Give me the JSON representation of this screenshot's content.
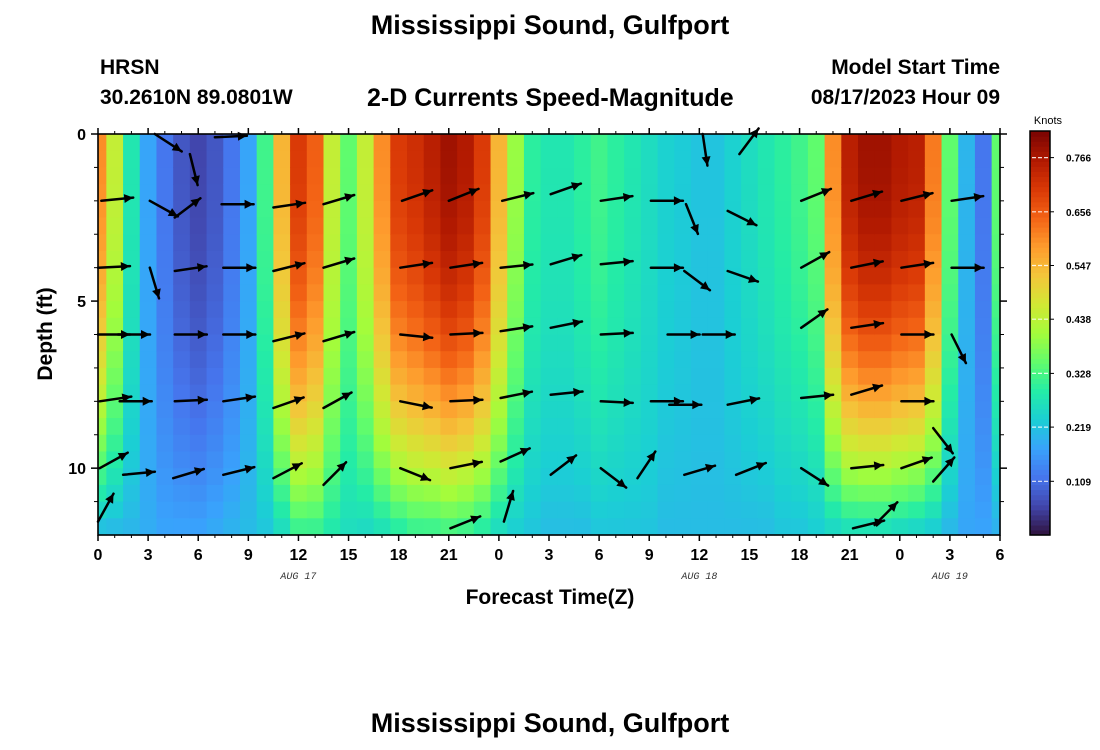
{
  "header": {
    "title": "Mississippi Sound, Gulfport",
    "station": "HRSN",
    "latlon": "30.2610N  89.0801W",
    "subtitle": "2-D Currents Speed-Magnitude",
    "model_start_label": "Model Start Time",
    "model_start_value": "08/17/2023 Hour 09"
  },
  "footer": {
    "title_repeat": "Mississippi Sound, Gulfport"
  },
  "chart_data": {
    "type": "heatmap",
    "xlabel": "Forecast Time(Z)",
    "ylabel": "Depth (ft)",
    "x_tick_labels": [
      "0",
      "3",
      "6",
      "9",
      "12",
      "15",
      "18",
      "21",
      "0",
      "3",
      "6",
      "9",
      "12",
      "15",
      "18",
      "21",
      "0",
      "3",
      "6"
    ],
    "x_range_hours": [
      0,
      54
    ],
    "date_labels": [
      {
        "label": "AUG 17",
        "hour": 12
      },
      {
        "label": "AUG 18",
        "hour": 36
      },
      {
        "label": "AUG 19",
        "hour": 51
      }
    ],
    "y_ticks": [
      0,
      5,
      10
    ],
    "ylim": [
      0,
      12
    ],
    "y_inverted": true,
    "colorbar": {
      "unit": "Knots",
      "ticks": [
        0.766,
        0.656,
        0.547,
        0.438,
        0.328,
        0.219,
        0.109
      ],
      "range": [
        0.0,
        0.82
      ],
      "colors": [
        "#30123b",
        "#4145ab",
        "#4675ed",
        "#39a2fc",
        "#1bcfd4",
        "#24eca6",
        "#61fc6c",
        "#a4fc3b",
        "#d1e834",
        "#f3c63a",
        "#fe9b2d",
        "#f36315",
        "#d93806",
        "#b11901",
        "#7a0402"
      ]
    },
    "speed_profiles": {
      "hours": [
        0,
        1,
        2,
        3,
        4,
        5,
        6,
        7,
        8,
        9,
        10,
        11,
        12,
        13,
        14,
        15,
        16,
        17,
        18,
        19,
        20,
        21,
        22,
        23,
        24,
        25,
        26,
        27,
        28,
        29,
        30,
        31,
        32,
        33,
        34,
        35,
        36,
        37,
        38,
        39,
        40,
        41,
        42,
        43,
        44,
        45,
        46,
        47,
        48,
        49,
        50,
        51,
        52,
        53,
        54
      ],
      "surface": [
        0.6,
        0.45,
        0.28,
        0.18,
        0.12,
        0.08,
        0.06,
        0.08,
        0.12,
        0.18,
        0.32,
        0.55,
        0.7,
        0.65,
        0.45,
        0.35,
        0.45,
        0.6,
        0.7,
        0.72,
        0.75,
        0.78,
        0.76,
        0.7,
        0.55,
        0.4,
        0.3,
        0.28,
        0.28,
        0.3,
        0.32,
        0.3,
        0.28,
        0.26,
        0.24,
        0.23,
        0.22,
        0.22,
        0.24,
        0.26,
        0.28,
        0.3,
        0.32,
        0.35,
        0.6,
        0.75,
        0.78,
        0.78,
        0.76,
        0.75,
        0.62,
        0.35,
        0.2,
        0.12,
        0.35
      ],
      "bottom": [
        0.2,
        0.2,
        0.2,
        0.19,
        0.18,
        0.18,
        0.18,
        0.19,
        0.2,
        0.21,
        0.22,
        0.25,
        0.3,
        0.3,
        0.28,
        0.26,
        0.25,
        0.26,
        0.28,
        0.3,
        0.3,
        0.31,
        0.3,
        0.28,
        0.25,
        0.23,
        0.22,
        0.21,
        0.21,
        0.21,
        0.22,
        0.22,
        0.22,
        0.22,
        0.21,
        0.21,
        0.21,
        0.21,
        0.21,
        0.21,
        0.21,
        0.22,
        0.22,
        0.23,
        0.24,
        0.25,
        0.25,
        0.25,
        0.24,
        0.23,
        0.22,
        0.2,
        0.18,
        0.18,
        0.19
      ]
    },
    "vectors": [
      {
        "t": 0.2,
        "d": 2.0,
        "u": 1.0,
        "v": 0.1
      },
      {
        "t": 3.4,
        "d": 0.0,
        "u": 0.85,
        "v": -0.55
      },
      {
        "t": 5.5,
        "d": 0.6,
        "u": 0.25,
        "v": -1.0
      },
      {
        "t": 7.0,
        "d": 0.1,
        "u": 1.0,
        "v": 0.05
      },
      {
        "t": 10.5,
        "d": 2.2,
        "u": 1.0,
        "v": 0.15
      },
      {
        "t": 13.5,
        "d": 2.1,
        "u": 1.0,
        "v": 0.3
      },
      {
        "t": 18.2,
        "d": 2.0,
        "u": 1.0,
        "v": 0.35
      },
      {
        "t": 21.0,
        "d": 2.0,
        "u": 1.0,
        "v": 0.4
      },
      {
        "t": 24.2,
        "d": 2.0,
        "u": 1.0,
        "v": 0.25
      },
      {
        "t": 27.1,
        "d": 1.8,
        "u": 1.0,
        "v": 0.35
      },
      {
        "t": 30.1,
        "d": 2.0,
        "u": 1.0,
        "v": 0.15
      },
      {
        "t": 33.1,
        "d": 2.0,
        "u": 1.0,
        "v": 0.0
      },
      {
        "t": 35.2,
        "d": 2.1,
        "u": 0.4,
        "v": -1.0
      },
      {
        "t": 37.7,
        "d": 2.3,
        "u": 0.9,
        "v": -0.45
      },
      {
        "t": 42.1,
        "d": 2.0,
        "u": 1.0,
        "v": 0.4
      },
      {
        "t": 45.1,
        "d": 2.0,
        "u": 1.0,
        "v": 0.3
      },
      {
        "t": 48.1,
        "d": 2.0,
        "u": 1.0,
        "v": 0.25
      },
      {
        "t": 51.1,
        "d": 2.0,
        "u": 1.0,
        "v": 0.15
      },
      {
        "t": 3.1,
        "d": 2.0,
        "u": 0.9,
        "v": -0.5
      },
      {
        "t": 4.6,
        "d": 2.5,
        "u": 0.8,
        "v": 0.6
      },
      {
        "t": 7.4,
        "d": 2.1,
        "u": 1.0,
        "v": 0.0
      },
      {
        "t": 36.2,
        "d": 0.0,
        "u": 0.15,
        "v": -1.0
      },
      {
        "t": 38.4,
        "d": 0.6,
        "u": 0.6,
        "v": 0.8
      },
      {
        "t": 0.0,
        "d": 4.0,
        "u": 1.0,
        "v": 0.05
      },
      {
        "t": 3.1,
        "d": 4.0,
        "u": 0.3,
        "v": -1.0
      },
      {
        "t": 4.6,
        "d": 4.1,
        "u": 1.0,
        "v": 0.15
      },
      {
        "t": 7.5,
        "d": 4.0,
        "u": 1.0,
        "v": 0.0
      },
      {
        "t": 10.5,
        "d": 4.1,
        "u": 1.0,
        "v": 0.25
      },
      {
        "t": 13.5,
        "d": 4.0,
        "u": 1.0,
        "v": 0.3
      },
      {
        "t": 18.1,
        "d": 4.0,
        "u": 1.0,
        "v": 0.15
      },
      {
        "t": 21.1,
        "d": 4.0,
        "u": 1.0,
        "v": 0.15
      },
      {
        "t": 24.1,
        "d": 4.0,
        "u": 1.0,
        "v": 0.1
      },
      {
        "t": 27.1,
        "d": 3.9,
        "u": 1.0,
        "v": 0.3
      },
      {
        "t": 30.1,
        "d": 3.9,
        "u": 1.0,
        "v": 0.1
      },
      {
        "t": 33.1,
        "d": 4.0,
        "u": 1.0,
        "v": 0.0
      },
      {
        "t": 35.1,
        "d": 4.1,
        "u": 0.8,
        "v": -0.6
      },
      {
        "t": 37.7,
        "d": 4.1,
        "u": 1.0,
        "v": -0.35
      },
      {
        "t": 42.1,
        "d": 4.0,
        "u": 0.9,
        "v": 0.5
      },
      {
        "t": 45.1,
        "d": 4.0,
        "u": 1.0,
        "v": 0.2
      },
      {
        "t": 48.1,
        "d": 4.0,
        "u": 1.0,
        "v": 0.15
      },
      {
        "t": 51.1,
        "d": 4.0,
        "u": 1.0,
        "v": 0.0
      },
      {
        "t": 0.0,
        "d": 6.0,
        "u": 1.0,
        "v": 0.0
      },
      {
        "t": 1.2,
        "d": 6.0,
        "u": 1.0,
        "v": 0.0
      },
      {
        "t": 4.6,
        "d": 6.0,
        "u": 1.0,
        "v": 0.0
      },
      {
        "t": 7.5,
        "d": 6.0,
        "u": 1.0,
        "v": 0.0
      },
      {
        "t": 10.5,
        "d": 6.2,
        "u": 1.0,
        "v": 0.25
      },
      {
        "t": 13.5,
        "d": 6.2,
        "u": 1.0,
        "v": 0.3
      },
      {
        "t": 18.1,
        "d": 6.0,
        "u": 1.0,
        "v": -0.1
      },
      {
        "t": 21.1,
        "d": 6.0,
        "u": 1.0,
        "v": 0.05
      },
      {
        "t": 24.1,
        "d": 5.9,
        "u": 1.0,
        "v": 0.15
      },
      {
        "t": 27.1,
        "d": 5.8,
        "u": 1.0,
        "v": 0.2
      },
      {
        "t": 30.1,
        "d": 6.0,
        "u": 1.0,
        "v": 0.05
      },
      {
        "t": 34.1,
        "d": 6.0,
        "u": 1.0,
        "v": 0.0
      },
      {
        "t": 36.2,
        "d": 6.0,
        "u": 1.0,
        "v": 0.0
      },
      {
        "t": 42.1,
        "d": 5.8,
        "u": 0.85,
        "v": 0.6
      },
      {
        "t": 45.1,
        "d": 5.8,
        "u": 1.0,
        "v": 0.15
      },
      {
        "t": 48.1,
        "d": 6.0,
        "u": 1.0,
        "v": 0.0
      },
      {
        "t": 51.1,
        "d": 6.0,
        "u": 0.5,
        "v": -1.0
      },
      {
        "t": 0.1,
        "d": 8.0,
        "u": 1.0,
        "v": 0.15
      },
      {
        "t": 1.3,
        "d": 8.0,
        "u": 1.0,
        "v": 0.0
      },
      {
        "t": 4.6,
        "d": 8.0,
        "u": 1.0,
        "v": 0.05
      },
      {
        "t": 7.5,
        "d": 8.0,
        "u": 1.0,
        "v": 0.15
      },
      {
        "t": 10.5,
        "d": 8.2,
        "u": 1.0,
        "v": 0.35
      },
      {
        "t": 13.5,
        "d": 8.2,
        "u": 0.9,
        "v": 0.5
      },
      {
        "t": 18.1,
        "d": 8.0,
        "u": 1.0,
        "v": -0.2
      },
      {
        "t": 21.1,
        "d": 8.0,
        "u": 1.0,
        "v": 0.05
      },
      {
        "t": 24.1,
        "d": 7.9,
        "u": 1.0,
        "v": 0.2
      },
      {
        "t": 27.1,
        "d": 7.8,
        "u": 1.0,
        "v": 0.1
      },
      {
        "t": 30.1,
        "d": 8.0,
        "u": 1.0,
        "v": -0.05
      },
      {
        "t": 33.1,
        "d": 8.0,
        "u": 1.0,
        "v": 0.0
      },
      {
        "t": 34.2,
        "d": 8.1,
        "u": 1.0,
        "v": 0.0
      },
      {
        "t": 37.7,
        "d": 8.1,
        "u": 1.0,
        "v": 0.2
      },
      {
        "t": 42.1,
        "d": 7.9,
        "u": 1.0,
        "v": 0.1
      },
      {
        "t": 45.1,
        "d": 7.8,
        "u": 1.0,
        "v": 0.3
      },
      {
        "t": 48.1,
        "d": 8.0,
        "u": 1.0,
        "v": 0.0
      },
      {
        "t": 50.0,
        "d": 8.8,
        "u": 0.7,
        "v": -0.9
      },
      {
        "t": 0.1,
        "d": 10.0,
        "u": 1.0,
        "v": 0.55
      },
      {
        "t": 1.5,
        "d": 10.2,
        "u": 1.0,
        "v": 0.1
      },
      {
        "t": 4.5,
        "d": 10.3,
        "u": 1.0,
        "v": 0.3
      },
      {
        "t": 7.5,
        "d": 10.2,
        "u": 1.0,
        "v": 0.25
      },
      {
        "t": 10.5,
        "d": 10.3,
        "u": 0.95,
        "v": 0.5
      },
      {
        "t": 13.5,
        "d": 10.5,
        "u": 0.8,
        "v": 0.8
      },
      {
        "t": 18.1,
        "d": 10.0,
        "u": 1.0,
        "v": -0.4
      },
      {
        "t": 21.1,
        "d": 10.0,
        "u": 1.0,
        "v": 0.2
      },
      {
        "t": 24.1,
        "d": 9.8,
        "u": 1.0,
        "v": 0.45
      },
      {
        "t": 27.1,
        "d": 10.2,
        "u": 0.85,
        "v": 0.65
      },
      {
        "t": 30.1,
        "d": 10.0,
        "u": 0.85,
        "v": -0.65
      },
      {
        "t": 32.3,
        "d": 10.3,
        "u": 0.6,
        "v": 0.9
      },
      {
        "t": 35.1,
        "d": 10.2,
        "u": 1.0,
        "v": 0.3
      },
      {
        "t": 38.2,
        "d": 10.2,
        "u": 1.0,
        "v": 0.4
      },
      {
        "t": 42.1,
        "d": 10.0,
        "u": 0.85,
        "v": -0.55
      },
      {
        "t": 45.1,
        "d": 10.0,
        "u": 1.0,
        "v": 0.1
      },
      {
        "t": 48.1,
        "d": 10.0,
        "u": 1.0,
        "v": 0.35
      },
      {
        "t": 50.0,
        "d": 10.4,
        "u": 0.7,
        "v": 0.8
      },
      {
        "t": 0.0,
        "d": 11.6,
        "u": 0.5,
        "v": 0.9
      },
      {
        "t": 24.3,
        "d": 11.6,
        "u": 0.3,
        "v": 1.0
      },
      {
        "t": 21.1,
        "d": 11.8,
        "u": 1.0,
        "v": 0.4
      },
      {
        "t": 45.2,
        "d": 11.8,
        "u": 1.0,
        "v": 0.25
      },
      {
        "t": 46.5,
        "d": 11.7,
        "u": 0.75,
        "v": 0.75
      }
    ]
  }
}
